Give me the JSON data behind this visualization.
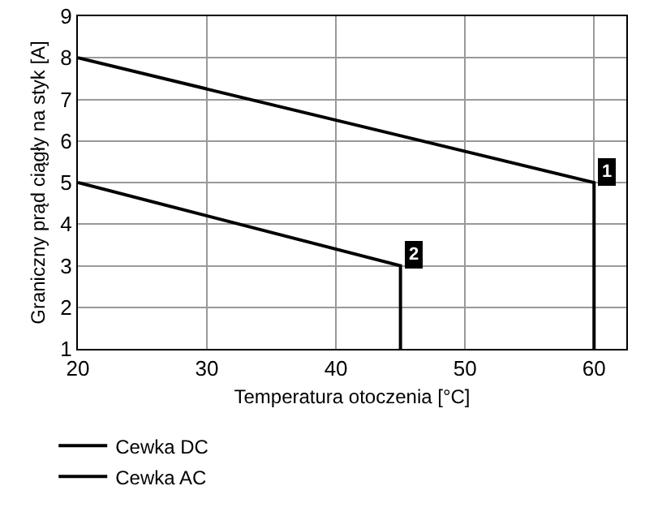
{
  "chart_data": {
    "type": "line",
    "xlabel": "Temperatura otoczenia [°C]",
    "ylabel": "Graniczny prąd ciągły na styk [A]",
    "series": [
      {
        "name": "Cewka DC",
        "color": "#000000",
        "x": [
          20,
          60,
          60
        ],
        "values": [
          8,
          5,
          1
        ]
      },
      {
        "name": "Cewka AC",
        "color": "#000000",
        "x": [
          20,
          45,
          45
        ],
        "values": [
          5,
          3,
          1
        ]
      }
    ],
    "annotations": [
      {
        "text": "1",
        "x": 60,
        "y": 5
      },
      {
        "text": "2",
        "x": 45,
        "y": 3
      }
    ],
    "xlim": [
      20,
      62.5
    ],
    "xticks": [
      20,
      30,
      40,
      50,
      60
    ],
    "ylim": [
      1,
      9
    ],
    "yticks": [
      1,
      2,
      3,
      4,
      5,
      6,
      7,
      8,
      9
    ],
    "grid": true,
    "legend": "bottom",
    "marker": "none",
    "line_style": "solid"
  }
}
